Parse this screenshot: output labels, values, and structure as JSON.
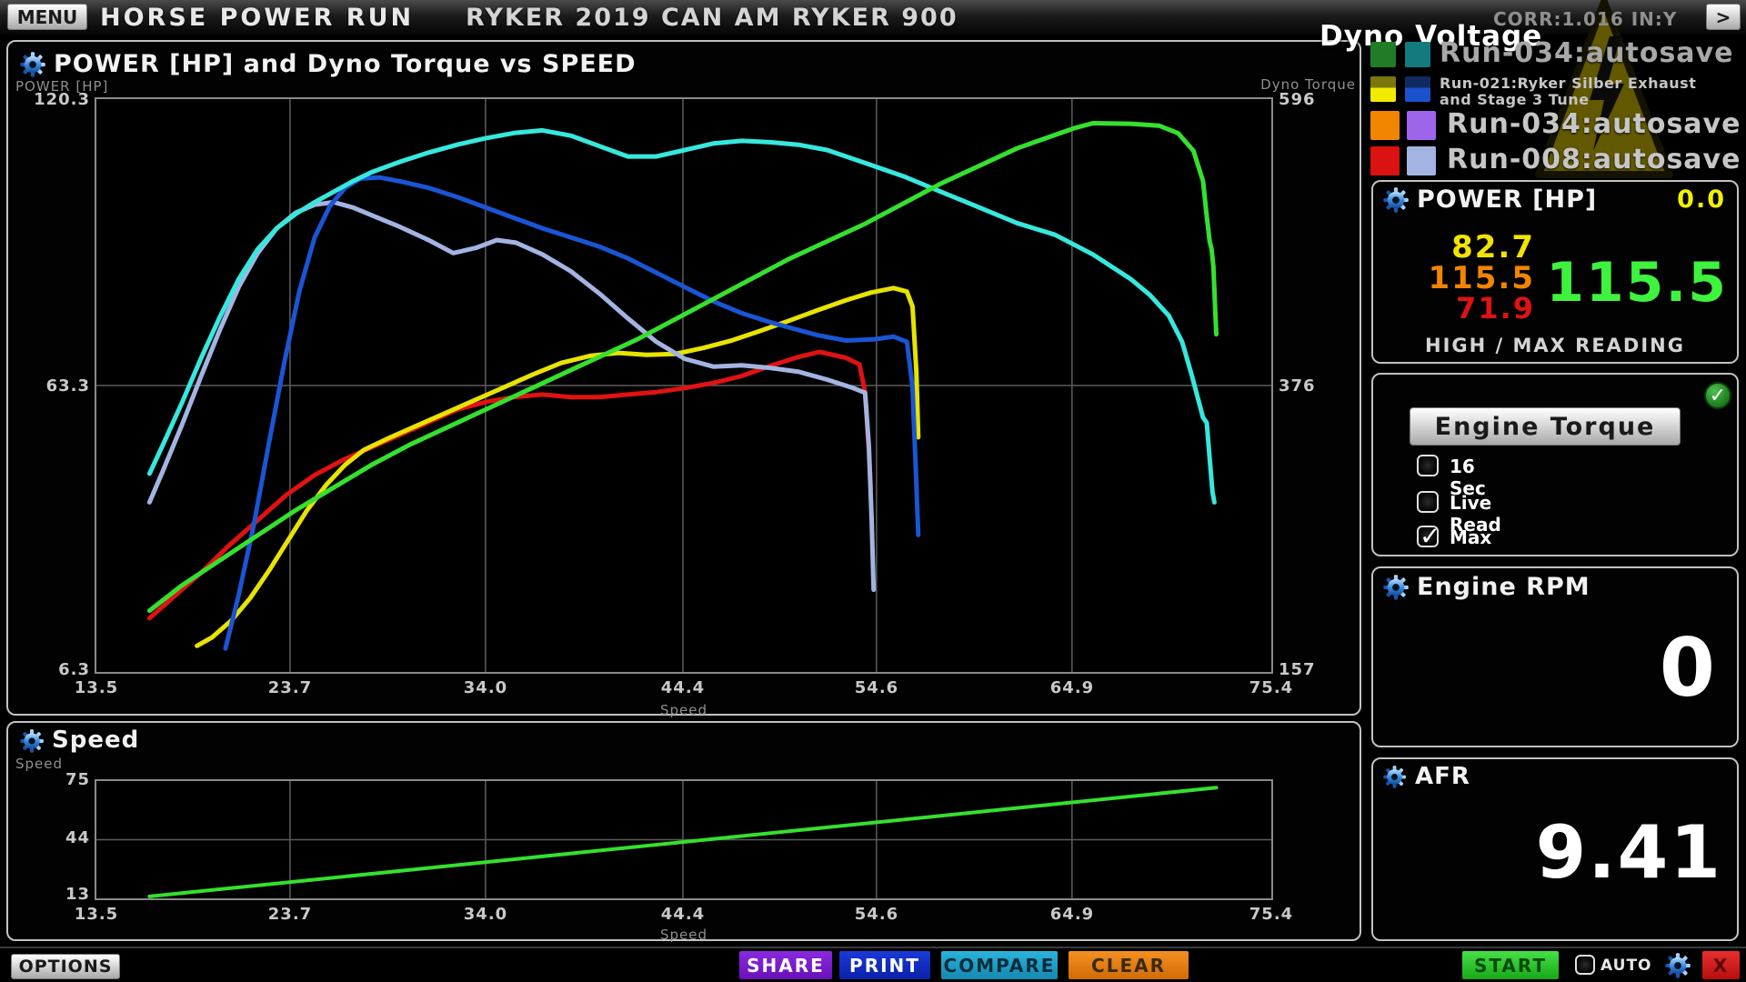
{
  "top_bar": {
    "menu_label": "MENU",
    "app_title": "HORSE POWER RUN",
    "vehicle_title": "RYKER 2019 CAN AM RYKER 900",
    "corr_status": "CORR:1.016 IN:Y",
    "next_label": ">"
  },
  "legend": {
    "title": "Dyno Voltage",
    "runs": [
      {
        "label": "Run-034:autosave",
        "swatch_left": [
          "#217c26"
        ],
        "swatch_right": [
          "#157a7e"
        ]
      },
      {
        "label_line1": "Run-021:Ryker Silber Exhaust",
        "label_line2": "and Stage 3 Tune",
        "swatch_left": [
          "#7c760e",
          "#f2ea00"
        ],
        "swatch_right": [
          "#122a62",
          "#1a52cc"
        ]
      },
      {
        "label": "Run-034:autosave",
        "swatch_left": [
          "#f28500"
        ],
        "swatch_right": [
          "#9d66ea"
        ]
      },
      {
        "label": "Run-008:autosave",
        "swatch_left": [
          "#da1212"
        ],
        "swatch_right": [
          "#a3b4e2"
        ]
      }
    ]
  },
  "sidebar": {
    "power": {
      "title": "POWER [HP]",
      "live_value": "0.0",
      "live_color": "#f2f200",
      "readings": [
        {
          "value": "82.7",
          "color": "#f2e400"
        },
        {
          "value": "115.5",
          "color": "#f28500"
        },
        {
          "value": "71.9",
          "color": "#e01212"
        }
      ],
      "max_value": "115.5",
      "max_color": "#3ef23e",
      "footer": "HIGH / MAX READING"
    },
    "torque": {
      "button_label": "Engine Torque",
      "options": [
        {
          "label": "16 Sec",
          "checked": false
        },
        {
          "label": "Live Read",
          "checked": false
        },
        {
          "label": "Max",
          "checked": true
        }
      ]
    },
    "rpm": {
      "title": "Engine RPM",
      "value": "0"
    },
    "afr": {
      "title": "AFR",
      "value": "9.41"
    }
  },
  "bottom_bar": {
    "options_label": "OPTIONS",
    "share_label": "SHARE",
    "print_label": "PRINT",
    "compare_label": "COMPARE",
    "clear_label": "CLEAR",
    "start_label": "START",
    "auto_label": "AUTO",
    "auto_checked": false,
    "close_label": "X"
  },
  "chart_data": [
    {
      "type": "line",
      "title": "POWER [HP] and Dyno Torque vs SPEED",
      "xlabel": "Speed",
      "xlim": [
        13.5,
        75.4
      ],
      "x_ticks": [
        "13.5",
        "23.7",
        "34.0",
        "44.4",
        "54.6",
        "64.9",
        "75.4"
      ],
      "grid": true,
      "left_axis": {
        "label": "POWER [HP]",
        "lim": [
          6.3,
          120.3
        ],
        "ticks": [
          "120.3",
          "63.3",
          "6.3"
        ]
      },
      "right_axis": {
        "label": "Dyno Torque",
        "lim": [
          157,
          596
        ],
        "ticks": [
          "596",
          "376",
          "157"
        ]
      },
      "series": [
        {
          "name": "Run-008 Power",
          "axis": "hp",
          "color": "#e01212",
          "width": 5,
          "points": [
            [
              16.3,
              17
            ],
            [
              17.5,
              21
            ],
            [
              19,
              26
            ],
            [
              20.5,
              31.5
            ],
            [
              22,
              36.5
            ],
            [
              23.5,
              41.5
            ],
            [
              25,
              45.5
            ],
            [
              26.5,
              48.5
            ],
            [
              28,
              51
            ],
            [
              29.5,
              53.5
            ],
            [
              31,
              56
            ],
            [
              32.5,
              58.5
            ],
            [
              34,
              60
            ],
            [
              35.5,
              61
            ],
            [
              37,
              61.5
            ],
            [
              38.5,
              61
            ],
            [
              40,
              61
            ],
            [
              41.5,
              61.5
            ],
            [
              43,
              62
            ],
            [
              44.5,
              62.8
            ],
            [
              46,
              63.8
            ],
            [
              47.5,
              65.2
            ],
            [
              49,
              67.2
            ],
            [
              50.5,
              69
            ],
            [
              51.6,
              70
            ],
            [
              53,
              68.8
            ],
            [
              53.7,
              67.5
            ],
            [
              54,
              62
            ],
            [
              54.2,
              50
            ],
            [
              54.3,
              42.5
            ]
          ]
        },
        {
          "name": "Run-021 Power",
          "axis": "hp",
          "color": "#e8e300",
          "width": 5,
          "points": [
            [
              18.8,
              11.5
            ],
            [
              19.6,
              13.2
            ],
            [
              20.6,
              16.5
            ],
            [
              21.6,
              21
            ],
            [
              22.6,
              26.5
            ],
            [
              23.6,
              32.5
            ],
            [
              24.6,
              38.5
            ],
            [
              25.6,
              43.5
            ],
            [
              26.6,
              47.5
            ],
            [
              27.6,
              50.5
            ],
            [
              29,
              53
            ],
            [
              30.5,
              55.5
            ],
            [
              32,
              58
            ],
            [
              33.5,
              60.5
            ],
            [
              35,
              63
            ],
            [
              36.5,
              65.5
            ],
            [
              38,
              67.8
            ],
            [
              39.5,
              69.2
            ],
            [
              41,
              69.8
            ],
            [
              42.5,
              69.4
            ],
            [
              44,
              69.6
            ],
            [
              45.5,
              70.8
            ],
            [
              47,
              72.3
            ],
            [
              48.5,
              74.2
            ],
            [
              50,
              76.2
            ],
            [
              51.5,
              78.3
            ],
            [
              53,
              80.3
            ],
            [
              54.3,
              81.8
            ],
            [
              55.5,
              82.7
            ],
            [
              56.2,
              82
            ],
            [
              56.5,
              79
            ],
            [
              56.7,
              66
            ],
            [
              56.8,
              53
            ]
          ]
        },
        {
          "name": "Run-008 Dyno Torque",
          "axis": "torque",
          "color": "#a3b4e2",
          "width": 5,
          "points": [
            [
              16.3,
              287
            ],
            [
              17,
              311
            ],
            [
              18,
              346
            ],
            [
              19,
              383
            ],
            [
              20,
              419
            ],
            [
              21,
              452
            ],
            [
              22,
              478
            ],
            [
              23,
              497
            ],
            [
              24,
              509
            ],
            [
              25,
              515
            ],
            [
              26,
              517
            ],
            [
              27,
              513
            ],
            [
              28,
              507
            ],
            [
              29.5,
              498
            ],
            [
              31,
              488
            ],
            [
              32.3,
              478
            ],
            [
              33.5,
              482
            ],
            [
              34.6,
              488
            ],
            [
              35.6,
              486
            ],
            [
              37,
              477
            ],
            [
              38.5,
              464
            ],
            [
              40,
              447
            ],
            [
              41.5,
              428
            ],
            [
              43,
              410
            ],
            [
              44.5,
              397
            ],
            [
              46,
              391
            ],
            [
              47.5,
              392
            ],
            [
              49,
              390
            ],
            [
              50.5,
              387
            ],
            [
              52,
              381
            ],
            [
              53.3,
              375
            ],
            [
              54,
              371
            ],
            [
              54.2,
              330
            ],
            [
              54.35,
              272
            ],
            [
              54.45,
              220
            ]
          ]
        },
        {
          "name": "Run-021 Dyno Torque",
          "axis": "torque",
          "color": "#1a55d5",
          "width": 5,
          "points": [
            [
              20.3,
              175
            ],
            [
              21,
              216
            ],
            [
              21.8,
              270
            ],
            [
              22.6,
              333
            ],
            [
              23.4,
              394
            ],
            [
              24.2,
              449
            ],
            [
              25,
              490
            ],
            [
              25.8,
              514
            ],
            [
              26.6,
              528
            ],
            [
              27.4,
              535
            ],
            [
              28.4,
              536
            ],
            [
              29.5,
              533
            ],
            [
              31,
              528
            ],
            [
              32.5,
              521
            ],
            [
              34,
              513
            ],
            [
              35.5,
              505
            ],
            [
              37,
              497
            ],
            [
              38.5,
              490
            ],
            [
              40,
              483
            ],
            [
              41.5,
              474
            ],
            [
              43,
              463
            ],
            [
              44.5,
              452
            ],
            [
              46,
              441
            ],
            [
              47.5,
              432
            ],
            [
              49,
              425
            ],
            [
              50.5,
              419
            ],
            [
              51.5,
              415
            ],
            [
              53,
              411
            ],
            [
              54.5,
              412
            ],
            [
              55.5,
              414
            ],
            [
              56.2,
              410
            ],
            [
              56.5,
              375
            ],
            [
              56.65,
              320
            ],
            [
              56.8,
              262
            ]
          ]
        },
        {
          "name": "Run-034 Dyno Torque",
          "axis": "torque",
          "color": "#36e8de",
          "width": 5,
          "points": [
            [
              16.3,
              309
            ],
            [
              17,
              331
            ],
            [
              18,
              363
            ],
            [
              19,
              397
            ],
            [
              20,
              429
            ],
            [
              21,
              458
            ],
            [
              22,
              481
            ],
            [
              23,
              497
            ],
            [
              24,
              508
            ],
            [
              25,
              517
            ],
            [
              26,
              525
            ],
            [
              27,
              533
            ],
            [
              28,
              540
            ],
            [
              29.5,
              548
            ],
            [
              31,
              555
            ],
            [
              32.5,
              561
            ],
            [
              34,
              566
            ],
            [
              35.5,
              570
            ],
            [
              37,
              572
            ],
            [
              38.5,
              568
            ],
            [
              40,
              560
            ],
            [
              41.5,
              552
            ],
            [
              43,
              552
            ],
            [
              44.5,
              557
            ],
            [
              46,
              562
            ],
            [
              47.5,
              564
            ],
            [
              49,
              563
            ],
            [
              50.5,
              561
            ],
            [
              52,
              557
            ],
            [
              54,
              547
            ],
            [
              56,
              537
            ],
            [
              58,
              525
            ],
            [
              60,
              513
            ],
            [
              62,
              501
            ],
            [
              64,
              492
            ],
            [
              66,
              477
            ],
            [
              68,
              458
            ],
            [
              69,
              446
            ],
            [
              70,
              430
            ],
            [
              70.7,
              410
            ],
            [
              71.2,
              385
            ],
            [
              71.6,
              363
            ],
            [
              71.8,
              352
            ],
            [
              72,
              348
            ],
            [
              72.1,
              330
            ],
            [
              72.3,
              295
            ],
            [
              72.4,
              287
            ]
          ]
        },
        {
          "name": "Run-034 Power",
          "axis": "hp",
          "color": "#35e02e",
          "width": 5,
          "points": [
            [
              16.3,
              18.5
            ],
            [
              18,
              23.5
            ],
            [
              20,
              28.5
            ],
            [
              22,
              33.5
            ],
            [
              24,
              38.5
            ],
            [
              26,
              43
            ],
            [
              28,
              47.5
            ],
            [
              30,
              51.5
            ],
            [
              32,
              55
            ],
            [
              34,
              58.5
            ],
            [
              36,
              62
            ],
            [
              38,
              65.5
            ],
            [
              40,
              69
            ],
            [
              42,
              72.5
            ],
            [
              44,
              76.5
            ],
            [
              46,
              80.5
            ],
            [
              48,
              84.5
            ],
            [
              50,
              88.5
            ],
            [
              52,
              92
            ],
            [
              54,
              95.5
            ],
            [
              56,
              99.5
            ],
            [
              58,
              103.5
            ],
            [
              60,
              107
            ],
            [
              62,
              110.5
            ],
            [
              63.5,
              112.5
            ],
            [
              65,
              114.5
            ],
            [
              66,
              115.5
            ],
            [
              68,
              115.4
            ],
            [
              69.5,
              115
            ],
            [
              70.5,
              113.5
            ],
            [
              71.3,
              110
            ],
            [
              71.8,
              104
            ],
            [
              72,
              97
            ],
            [
              72.15,
              92
            ],
            [
              72.25,
              90.5
            ],
            [
              72.35,
              87
            ],
            [
              72.45,
              78
            ],
            [
              72.5,
              73.5
            ]
          ]
        }
      ]
    },
    {
      "type": "line",
      "title": "Speed",
      "ylabel": "Speed",
      "xlabel": "Speed",
      "xlim": [
        13.5,
        75.4
      ],
      "x_ticks": [
        "13.5",
        "23.7",
        "34.0",
        "44.4",
        "54.6",
        "64.9",
        "75.4"
      ],
      "ylim": [
        13,
        75
      ],
      "y_ticks": [
        "75",
        "44",
        "13"
      ],
      "grid": true,
      "series": [
        {
          "name": "Speed",
          "axis": "y",
          "color": "#35e02e",
          "width": 4,
          "points": [
            [
              16.3,
              14
            ],
            [
              72.5,
              71.5
            ]
          ]
        }
      ]
    }
  ]
}
